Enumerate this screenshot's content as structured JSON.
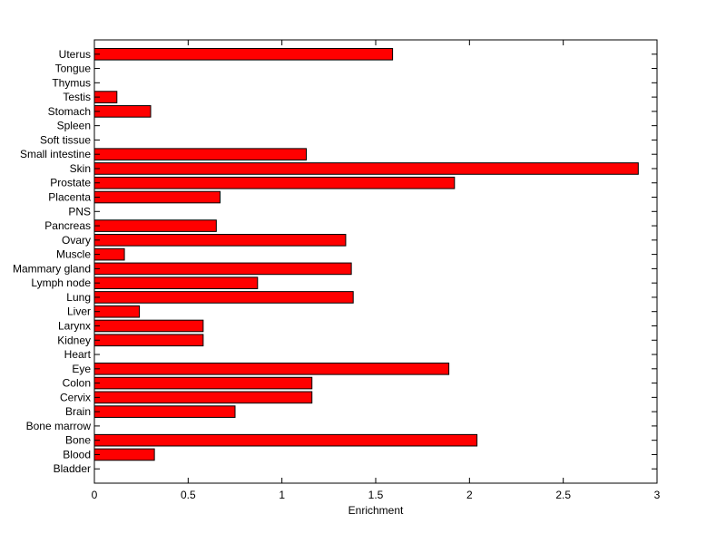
{
  "chart_data": {
    "type": "bar",
    "orientation": "horizontal",
    "xlabel": "Enrichment",
    "ylabel": "",
    "title": "",
    "xlim": [
      0,
      3
    ],
    "xticks": [
      "0",
      "0.5",
      "1",
      "1.5",
      "2",
      "2.5",
      "3"
    ],
    "grid": false,
    "legend": "none",
    "bar_color": "#ff0000",
    "categories": [
      "Bladder",
      "Blood",
      "Bone",
      "Bone marrow",
      "Brain",
      "Cervix",
      "Colon",
      "Eye",
      "Heart",
      "Kidney",
      "Larynx",
      "Liver",
      "Lung",
      "Lymph node",
      "Mammary gland",
      "Muscle",
      "Ovary",
      "Pancreas",
      "PNS",
      "Placenta",
      "Prostate",
      "Skin",
      "Small intestine",
      "Soft tissue",
      "Spleen",
      "Stomach",
      "Testis",
      "Thymus",
      "Tongue",
      "Uterus"
    ],
    "values": [
      0,
      0.32,
      2.04,
      0,
      0.75,
      1.16,
      1.16,
      1.89,
      0,
      0.58,
      0.58,
      0.24,
      1.38,
      0.87,
      1.37,
      0.16,
      1.34,
      0.65,
      0,
      0.67,
      1.92,
      2.9,
      1.13,
      0,
      0,
      0.3,
      0.12,
      0,
      0,
      1.59
    ]
  }
}
